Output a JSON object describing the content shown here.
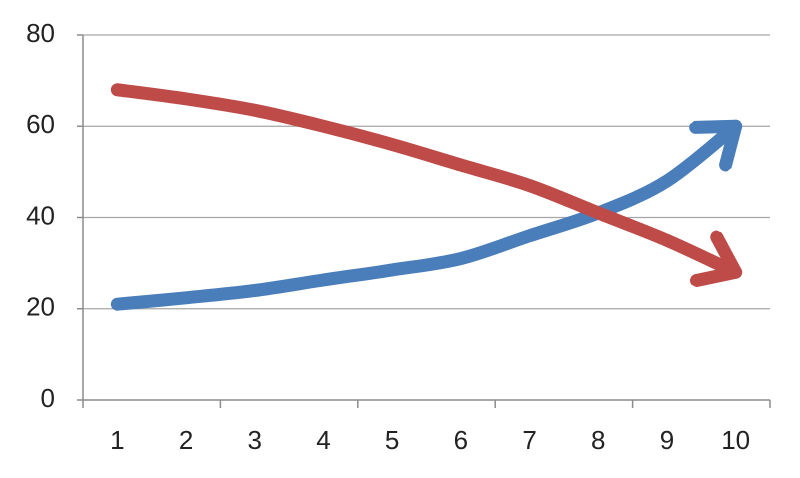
{
  "chart_data": {
    "type": "line",
    "categories": [
      "1",
      "2",
      "3",
      "4",
      "5",
      "6",
      "7",
      "8",
      "9",
      "10"
    ],
    "series": [
      {
        "color": "#4a7ebb",
        "values": [
          21,
          22.4,
          24,
          26.3,
          28.5,
          31,
          36,
          41,
          48,
          60
        ]
      },
      {
        "color": "#be4b48",
        "values": [
          68,
          66,
          63.5,
          60,
          56,
          51.5,
          47,
          41,
          35,
          28
        ]
      }
    ],
    "ylim": [
      0,
      80
    ],
    "yticks": [
      0,
      20,
      40,
      60,
      80
    ],
    "grid": true
  }
}
